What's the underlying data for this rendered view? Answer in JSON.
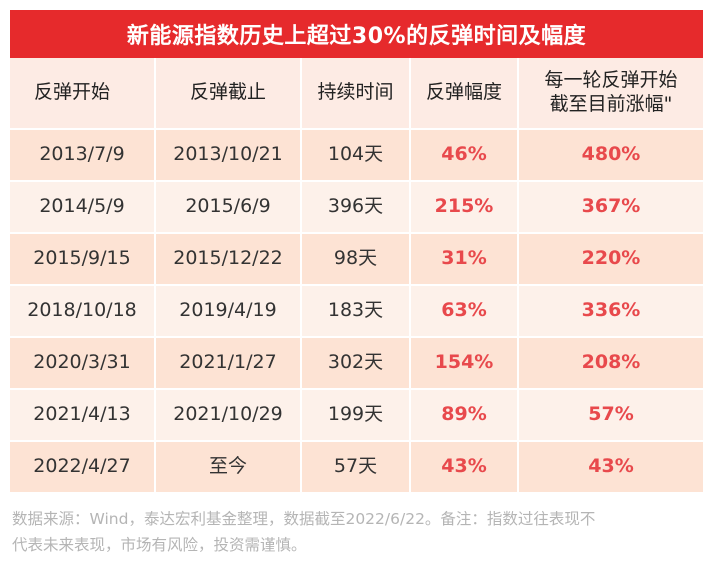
{
  "title": "新能源指数历史上超过30%的反弹时间及幅度",
  "headers": {
    "start": "反弹开始",
    "end": "反弹截止",
    "duration": "持续时间",
    "magnitude": "反弹幅度",
    "since_line1": "每一轮反弹开始",
    "since_line2": "截至目前涨幅\""
  },
  "rows": [
    {
      "start": "2013/7/9",
      "end": "2013/10/21",
      "duration": "104天",
      "magnitude": "46%",
      "since": "480%"
    },
    {
      "start": "2014/5/9",
      "end": "2015/6/9",
      "duration": "396天",
      "magnitude": "215%",
      "since": "367%"
    },
    {
      "start": "2015/9/15",
      "end": "2015/12/22",
      "duration": "98天",
      "magnitude": "31%",
      "since": "220%"
    },
    {
      "start": "2018/10/18",
      "end": "2019/4/19",
      "duration": "183天",
      "magnitude": "63%",
      "since": "336%"
    },
    {
      "start": "2020/3/31",
      "end": "2021/1/27",
      "duration": "302天",
      "magnitude": "154%",
      "since": "208%"
    },
    {
      "start": "2021/4/13",
      "end": "2021/10/29",
      "duration": "199天",
      "magnitude": "89%",
      "since": "57%"
    },
    {
      "start": "2022/4/27",
      "end": "至今",
      "duration": "57天",
      "magnitude": "43%",
      "since": "43%"
    }
  ],
  "source_line1": "数据来源：Wind，泰达宏利基金整理，数据截至2022/6/22。备注：指数过往表现不",
  "source_line2": "代表未来表现，市场有风险，投资需谨慎。",
  "colors": {
    "title_bg": "#e62a2c",
    "row_odd": "#fde3d4",
    "row_even": "#fdf1ea",
    "accent_text": "#e8494c"
  }
}
